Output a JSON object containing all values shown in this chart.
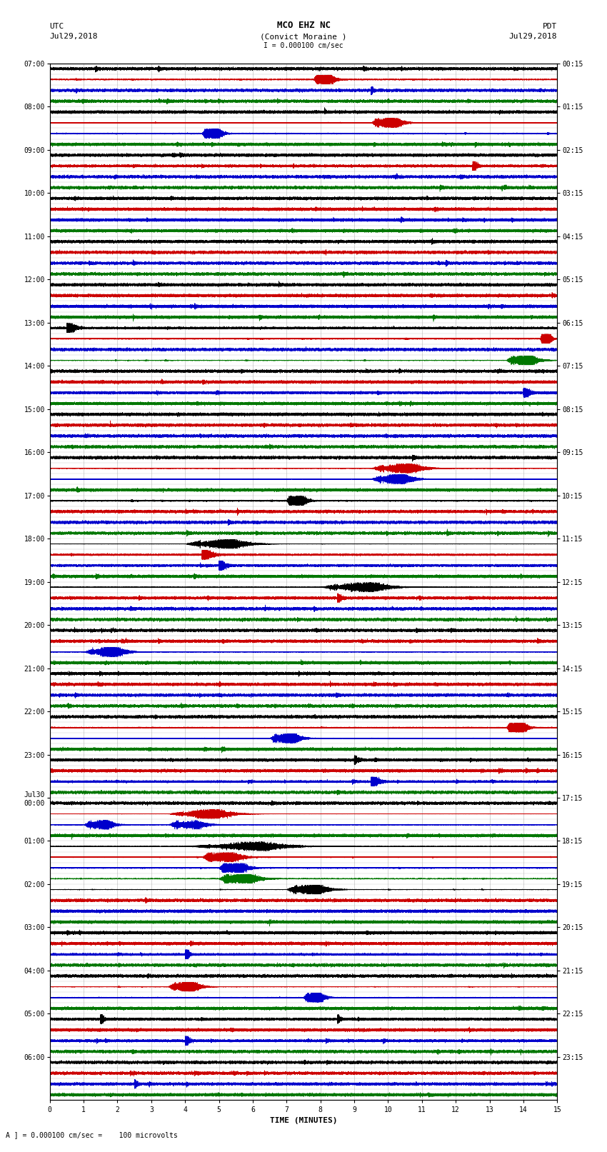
{
  "title_line1": "MCO EHZ NC",
  "title_line2": "(Convict Moraine )",
  "scale_label": "I = 0.000100 cm/sec",
  "left_label_top": "UTC",
  "left_label_date": "Jul29,2018",
  "right_label_top": "PDT",
  "right_label_date": "Jul29,2018",
  "bottom_label": "TIME (MINUTES)",
  "bottom_note": "A ] = 0.000100 cm/sec =    100 microvolts",
  "xlabel_ticks": [
    0,
    1,
    2,
    3,
    4,
    5,
    6,
    7,
    8,
    9,
    10,
    11,
    12,
    13,
    14,
    15
  ],
  "trace_duration_minutes": 15,
  "sample_rate": 50,
  "background_color": "#ffffff",
  "colors_cycle": [
    "#000000",
    "#cc0000",
    "#0000cc",
    "#007700"
  ],
  "utc_labels": {
    "0": "07:00",
    "4": "08:00",
    "8": "09:00",
    "12": "10:00",
    "16": "11:00",
    "20": "12:00",
    "24": "13:00",
    "28": "14:00",
    "32": "15:00",
    "36": "16:00",
    "40": "17:00",
    "44": "18:00",
    "48": "19:00",
    "52": "20:00",
    "56": "21:00",
    "60": "22:00",
    "64": "23:00",
    "68": "Jul30\n00:00",
    "72": "01:00",
    "76": "02:00",
    "80": "03:00",
    "84": "04:00",
    "88": "05:00",
    "92": "06:00"
  },
  "pdt_labels": {
    "0": "00:15",
    "4": "01:15",
    "8": "02:15",
    "12": "03:15",
    "16": "04:15",
    "20": "05:15",
    "24": "06:15",
    "28": "07:15",
    "32": "08:15",
    "36": "09:15",
    "40": "10:15",
    "44": "11:15",
    "48": "12:15",
    "52": "13:15",
    "56": "14:15",
    "60": "15:15",
    "64": "16:15",
    "68": "17:15",
    "72": "18:15",
    "76": "19:15",
    "80": "20:15",
    "84": "21:15",
    "88": "22:15",
    "92": "23:15"
  },
  "num_traces": 96,
  "title_fontsize": 9,
  "label_fontsize": 8,
  "tick_fontsize": 7,
  "axis_fontsize": 8
}
